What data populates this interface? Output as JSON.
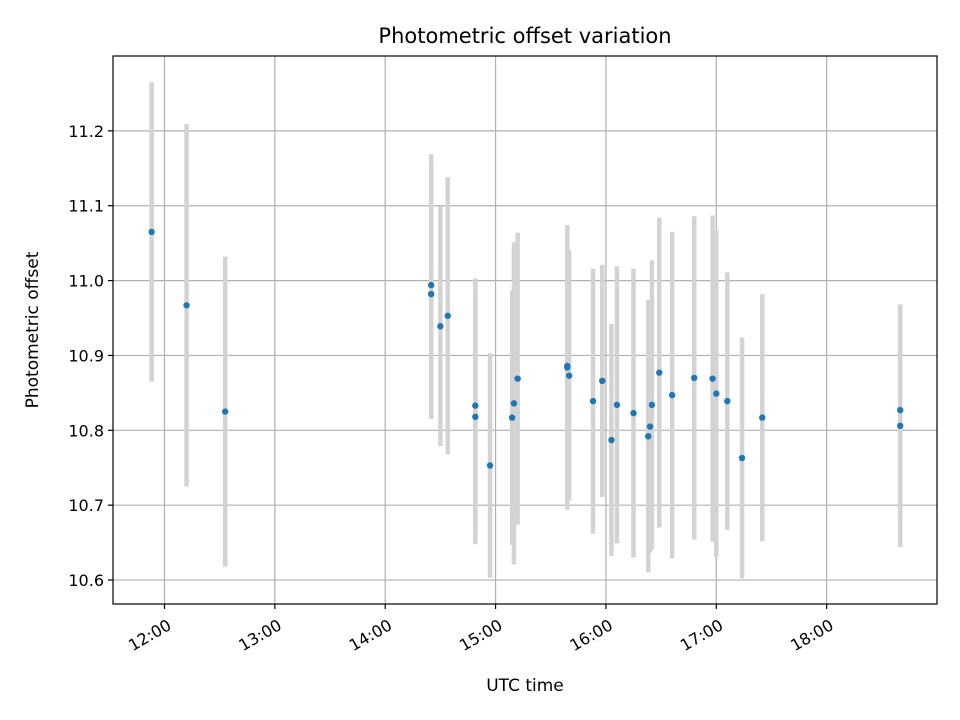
{
  "chart_data": {
    "type": "scatter",
    "title": "Photometric offset variation",
    "xlabel": "UTC time",
    "ylabel": "Photometric offset",
    "xlim": [
      "11:32",
      "19:00"
    ],
    "ylim": [
      10.568,
      11.3
    ],
    "grid": true,
    "x_ticks": [
      "12:00",
      "13:00",
      "14:00",
      "15:00",
      "16:00",
      "17:00",
      "18:00"
    ],
    "y_ticks": [
      "10.6",
      "10.7",
      "10.8",
      "10.9",
      "11.0",
      "11.1",
      "11.2"
    ],
    "series": [
      {
        "marker_color": "#1f77b4",
        "errorbar_color": "#d3d3d3",
        "points": [
          {
            "x": "11:53",
            "y": 11.065,
            "err": 0.2
          },
          {
            "x": "12:12",
            "y": 10.967,
            "err": 0.242
          },
          {
            "x": "12:33",
            "y": 10.825,
            "err": 0.207
          },
          {
            "x": "14:25",
            "y": 10.994,
            "err": 0.175
          },
          {
            "x": "14:25",
            "y": 10.982,
            "err": 0.167
          },
          {
            "x": "14:30",
            "y": 10.939,
            "err": 0.16
          },
          {
            "x": "14:34",
            "y": 10.953,
            "err": 0.185
          },
          {
            "x": "14:49",
            "y": 10.833,
            "err": 0.17
          },
          {
            "x": "14:49",
            "y": 10.818,
            "err": 0.17
          },
          {
            "x": "14:57",
            "y": 10.753,
            "err": 0.15
          },
          {
            "x": "15:09",
            "y": 10.817,
            "err": 0.17
          },
          {
            "x": "15:10",
            "y": 10.836,
            "err": 0.215
          },
          {
            "x": "15:12",
            "y": 10.869,
            "err": 0.195
          },
          {
            "x": "15:39",
            "y": 10.884,
            "err": 0.19
          },
          {
            "x": "15:39",
            "y": 10.886,
            "err": 0.188
          },
          {
            "x": "15:40",
            "y": 10.873,
            "err": 0.167
          },
          {
            "x": "15:53",
            "y": 10.839,
            "err": 0.177
          },
          {
            "x": "15:58",
            "y": 10.866,
            "err": 0.155
          },
          {
            "x": "16:03",
            "y": 10.787,
            "err": 0.155
          },
          {
            "x": "16:06",
            "y": 10.834,
            "err": 0.185
          },
          {
            "x": "16:15",
            "y": 10.823,
            "err": 0.193
          },
          {
            "x": "16:23",
            "y": 10.792,
            "err": 0.182
          },
          {
            "x": "16:24",
            "y": 10.805,
            "err": 0.168
          },
          {
            "x": "16:25",
            "y": 10.834,
            "err": 0.193
          },
          {
            "x": "16:29",
            "y": 10.877,
            "err": 0.207
          },
          {
            "x": "16:36",
            "y": 10.847,
            "err": 0.218
          },
          {
            "x": "16:48",
            "y": 10.87,
            "err": 0.216
          },
          {
            "x": "16:58",
            "y": 10.869,
            "err": 0.218
          },
          {
            "x": "17:00",
            "y": 10.849,
            "err": 0.218
          },
          {
            "x": "17:06",
            "y": 10.839,
            "err": 0.172
          },
          {
            "x": "17:14",
            "y": 10.763,
            "err": 0.161
          },
          {
            "x": "17:25",
            "y": 10.817,
            "err": 0.165
          },
          {
            "x": "18:40",
            "y": 10.827,
            "err": 0.14
          },
          {
            "x": "18:40",
            "y": 10.806,
            "err": 0.162
          }
        ]
      }
    ]
  }
}
